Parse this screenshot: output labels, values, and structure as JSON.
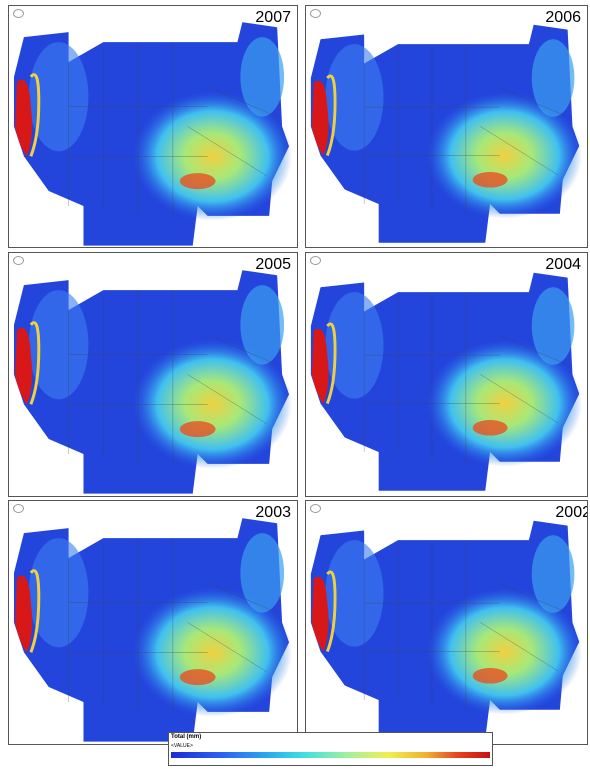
{
  "panels": [
    {
      "year": "2007"
    },
    {
      "year": "2006"
    },
    {
      "year": "2005"
    },
    {
      "year": "2004"
    },
    {
      "year": "2003"
    },
    {
      "year": "2002"
    }
  ],
  "legend": {
    "title": "Total (mm)",
    "field": "<VALUE>"
  }
}
